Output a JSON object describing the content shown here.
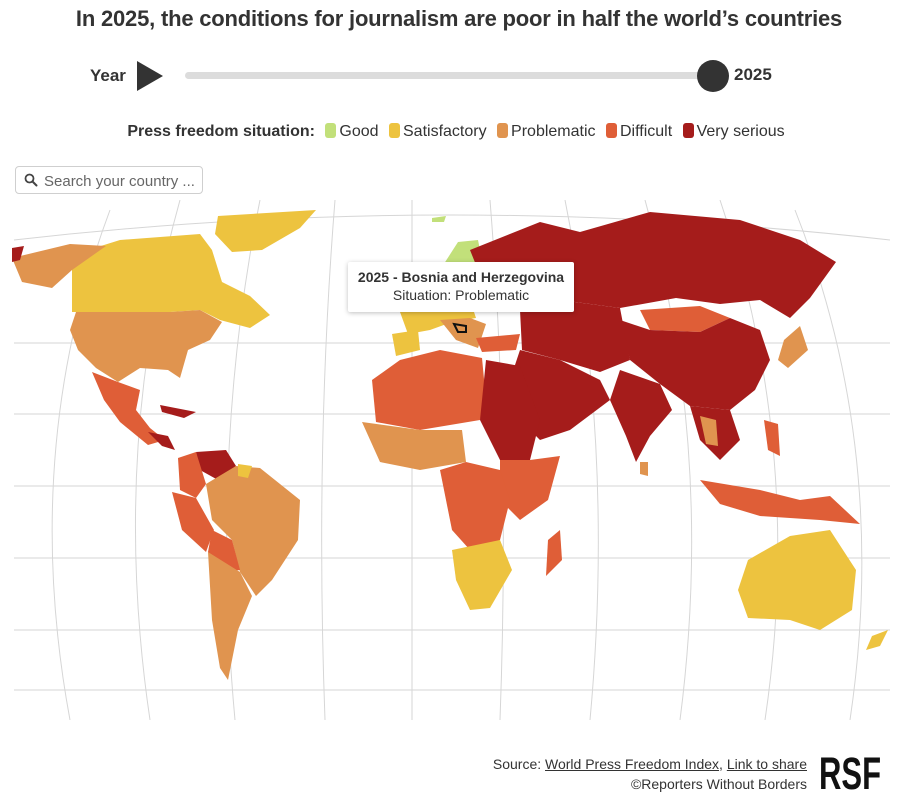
{
  "title": "In 2025, the conditions for journalism are poor in half the world’s countries",
  "year_control": {
    "label": "Year",
    "value": "2025"
  },
  "legend": {
    "title": "Press freedom situation:",
    "items": [
      {
        "label": "Good",
        "color": "#c2e07a"
      },
      {
        "label": "Satisfactory",
        "color": "#edc33f"
      },
      {
        "label": "Problematic",
        "color": "#e0944f"
      },
      {
        "label": "Difficult",
        "color": "#df5e37"
      },
      {
        "label": "Very serious",
        "color": "#a51c1b"
      }
    ]
  },
  "search": {
    "placeholder": "Search your country ..."
  },
  "tooltip": {
    "title": "2025 - Bosnia and Herzegovina",
    "situation": "Situation: Problematic"
  },
  "footer": {
    "source_prefix": "Source:",
    "source_link": "World Press Freedom Index",
    "separator": ",",
    "share_link": "Link to share",
    "copyright": "©Reporters Without Borders"
  },
  "logo": {
    "text": "RSF"
  },
  "colors": {
    "good": "#c2e07a",
    "satisfactory": "#edc33f",
    "problematic": "#e0944f",
    "difficult": "#df5e37",
    "very_serious": "#a51c1b",
    "graticule": "#d6d6d6"
  }
}
